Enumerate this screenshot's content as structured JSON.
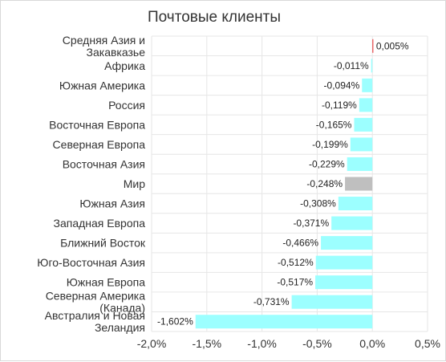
{
  "chart_data": {
    "type": "bar",
    "orientation": "horizontal",
    "title": "Почтовые клиенты",
    "categories": [
      "Средняя Азия и Закавказье",
      "Африка",
      "Южная Америка",
      "Россия",
      "Восточная Европа",
      "Северная Европа",
      "Восточная Азия",
      "Мир",
      "Южная Азия",
      "Западная Европа",
      "Ближний Восток",
      "Юго-Восточная Азия",
      "Южная Европа",
      "Северная Америка (Канада)",
      "Австралия и Новая Зеландия"
    ],
    "category_lines": [
      [
        "Средняя Азия и",
        "Закавказье"
      ],
      [
        "Африка"
      ],
      [
        "Южная Америка"
      ],
      [
        "Россия"
      ],
      [
        "Восточная Европа"
      ],
      [
        "Северная Европа"
      ],
      [
        "Восточная Азия"
      ],
      [
        "Мир"
      ],
      [
        "Южная Азия"
      ],
      [
        "Западная Европа"
      ],
      [
        "Ближний Восток"
      ],
      [
        "Юго-Восточная Азия"
      ],
      [
        "Южная Европа"
      ],
      [
        "Северная Америка",
        "(Канада)"
      ],
      [
        "Австралия и Новая",
        "Зеландия"
      ]
    ],
    "values": [
      0.005,
      -0.011,
      -0.094,
      -0.119,
      -0.165,
      -0.199,
      -0.229,
      -0.248,
      -0.308,
      -0.371,
      -0.466,
      -0.512,
      -0.517,
      -0.731,
      -1.602
    ],
    "value_labels": [
      "0,005%",
      "-0,011%",
      "-0,094%",
      "-0,119%",
      "-0,165%",
      "-0,199%",
      "-0,229%",
      "-0,248%",
      "-0,308%",
      "-0,371%",
      "-0,466%",
      "-0,512%",
      "-0,517%",
      "-0,731%",
      "-1,602%"
    ],
    "xlim": [
      -2.0,
      0.5
    ],
    "xticks": [
      -2.0,
      -1.5,
      -1.0,
      -0.5,
      0.0,
      0.5
    ],
    "xtick_labels": [
      "-2,0%",
      "-1,5%",
      "-1,0%",
      "-0,5%",
      "0,0%",
      "0,5%"
    ],
    "xlabel": "",
    "ylabel": "",
    "grid": true,
    "legend": "none",
    "colors": {
      "negative": "#9cffff",
      "positive": "#e8474a",
      "highlight": "#bfbfbf",
      "grid": "#e6e6e6"
    },
    "highlight_category": "Мир"
  }
}
